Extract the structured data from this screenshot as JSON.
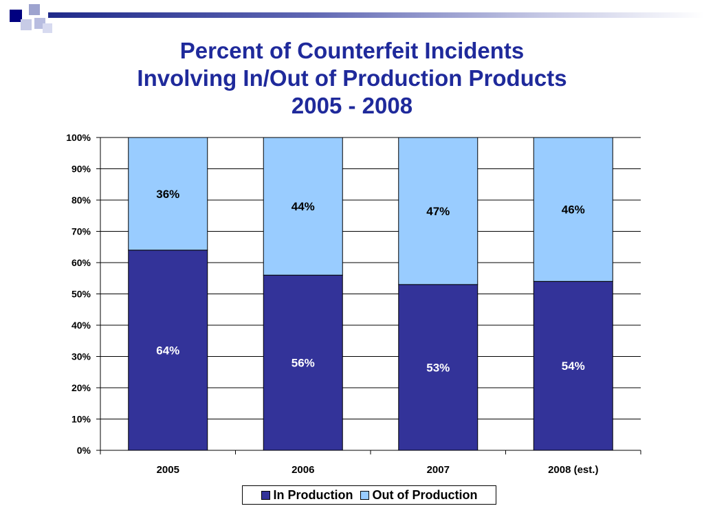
{
  "title_lines": [
    "Percent of Counterfeit Incidents",
    "Involving In/Out of Production Products",
    "2005 - 2008"
  ],
  "colors": {
    "in_production": "#333399",
    "out_of_production": "#99ccff",
    "title": "#1f2a9b"
  },
  "chart_data": {
    "type": "bar",
    "stacked": true,
    "title": "Percent of Counterfeit Incidents Involving In/Out of Production Products 2005 - 2008",
    "categories": [
      "2005",
      "2006",
      "2007",
      "2008 (est.)"
    ],
    "series": [
      {
        "name": "In Production",
        "values": [
          64,
          56,
          53,
          54
        ],
        "labels": [
          "64%",
          "56%",
          "53%",
          "54%"
        ]
      },
      {
        "name": "Out of Production",
        "values": [
          36,
          44,
          47,
          46
        ],
        "labels": [
          "36%",
          "44%",
          "47%",
          "46%"
        ]
      }
    ],
    "ylim": [
      0,
      100
    ],
    "yticks": [
      "0%",
      "10%",
      "20%",
      "30%",
      "40%",
      "50%",
      "60%",
      "70%",
      "80%",
      "90%",
      "100%"
    ],
    "grid": true,
    "legend_position": "bottom"
  }
}
